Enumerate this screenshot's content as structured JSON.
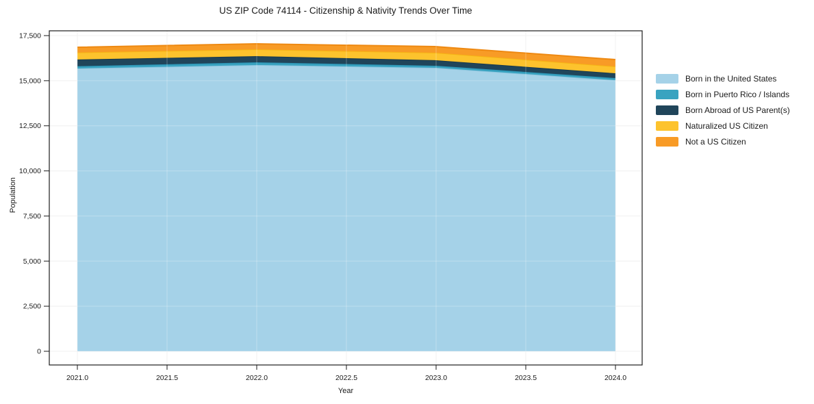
{
  "chart_data": {
    "type": "area",
    "stacked": true,
    "title": "US ZIP Code 74114 - Citizenship & Nativity Trends Over Time",
    "xlabel": "Year",
    "ylabel": "Population",
    "x": [
      2021,
      2022,
      2023,
      2024
    ],
    "series": [
      {
        "name": "Born in the United States",
        "color": "#a5d2e8",
        "edge": "#8fc6e0",
        "values": [
          15680,
          15870,
          15715,
          15030
        ]
      },
      {
        "name": "Born in Puerto Rico / Islands",
        "color": "#39a3c0",
        "edge": "#2b93b4",
        "values": [
          125,
          150,
          115,
          115
        ]
      },
      {
        "name": "Born Abroad of US Parent(s)",
        "color": "#20455a",
        "edge": "#17394c",
        "values": [
          370,
          340,
          305,
          265
        ]
      },
      {
        "name": "Naturalized US Citizen",
        "color": "#fdc32d",
        "edge": "#f5b414",
        "values": [
          390,
          380,
          415,
          380
        ]
      },
      {
        "name": "Not a US Citizen",
        "color": "#f89b26",
        "edge": "#ee8912",
        "values": [
          290,
          305,
          340,
          380
        ]
      }
    ],
    "totals": [
      16855,
      17045,
      16890,
      16170
    ],
    "xticks": {
      "values": [
        2021.0,
        2021.5,
        2022.0,
        2022.5,
        2023.0,
        2023.5,
        2024.0
      ],
      "labels": [
        "2021.0",
        "2021.5",
        "2022.0",
        "2022.5",
        "2023.0",
        "2023.5",
        "2024.0"
      ]
    },
    "yticks": {
      "values": [
        0,
        2500,
        5000,
        7500,
        10000,
        12500,
        15000,
        17500
      ],
      "labels": [
        "0",
        "2,500",
        "5,000",
        "7,500",
        "10,000",
        "12,500",
        "15,000",
        "17,500"
      ]
    },
    "xlim": [
      2020.84,
      2024.15
    ],
    "ylim": [
      -760,
      17730
    ],
    "grid": true,
    "legend_position": "right-of-plot"
  },
  "colors": {
    "background": "#ffffff",
    "spine": "#1a1a1a",
    "grid": "#ebebeb",
    "grid_overlay": "rgba(255,255,255,0.28)",
    "text": "#1a1a1a"
  }
}
